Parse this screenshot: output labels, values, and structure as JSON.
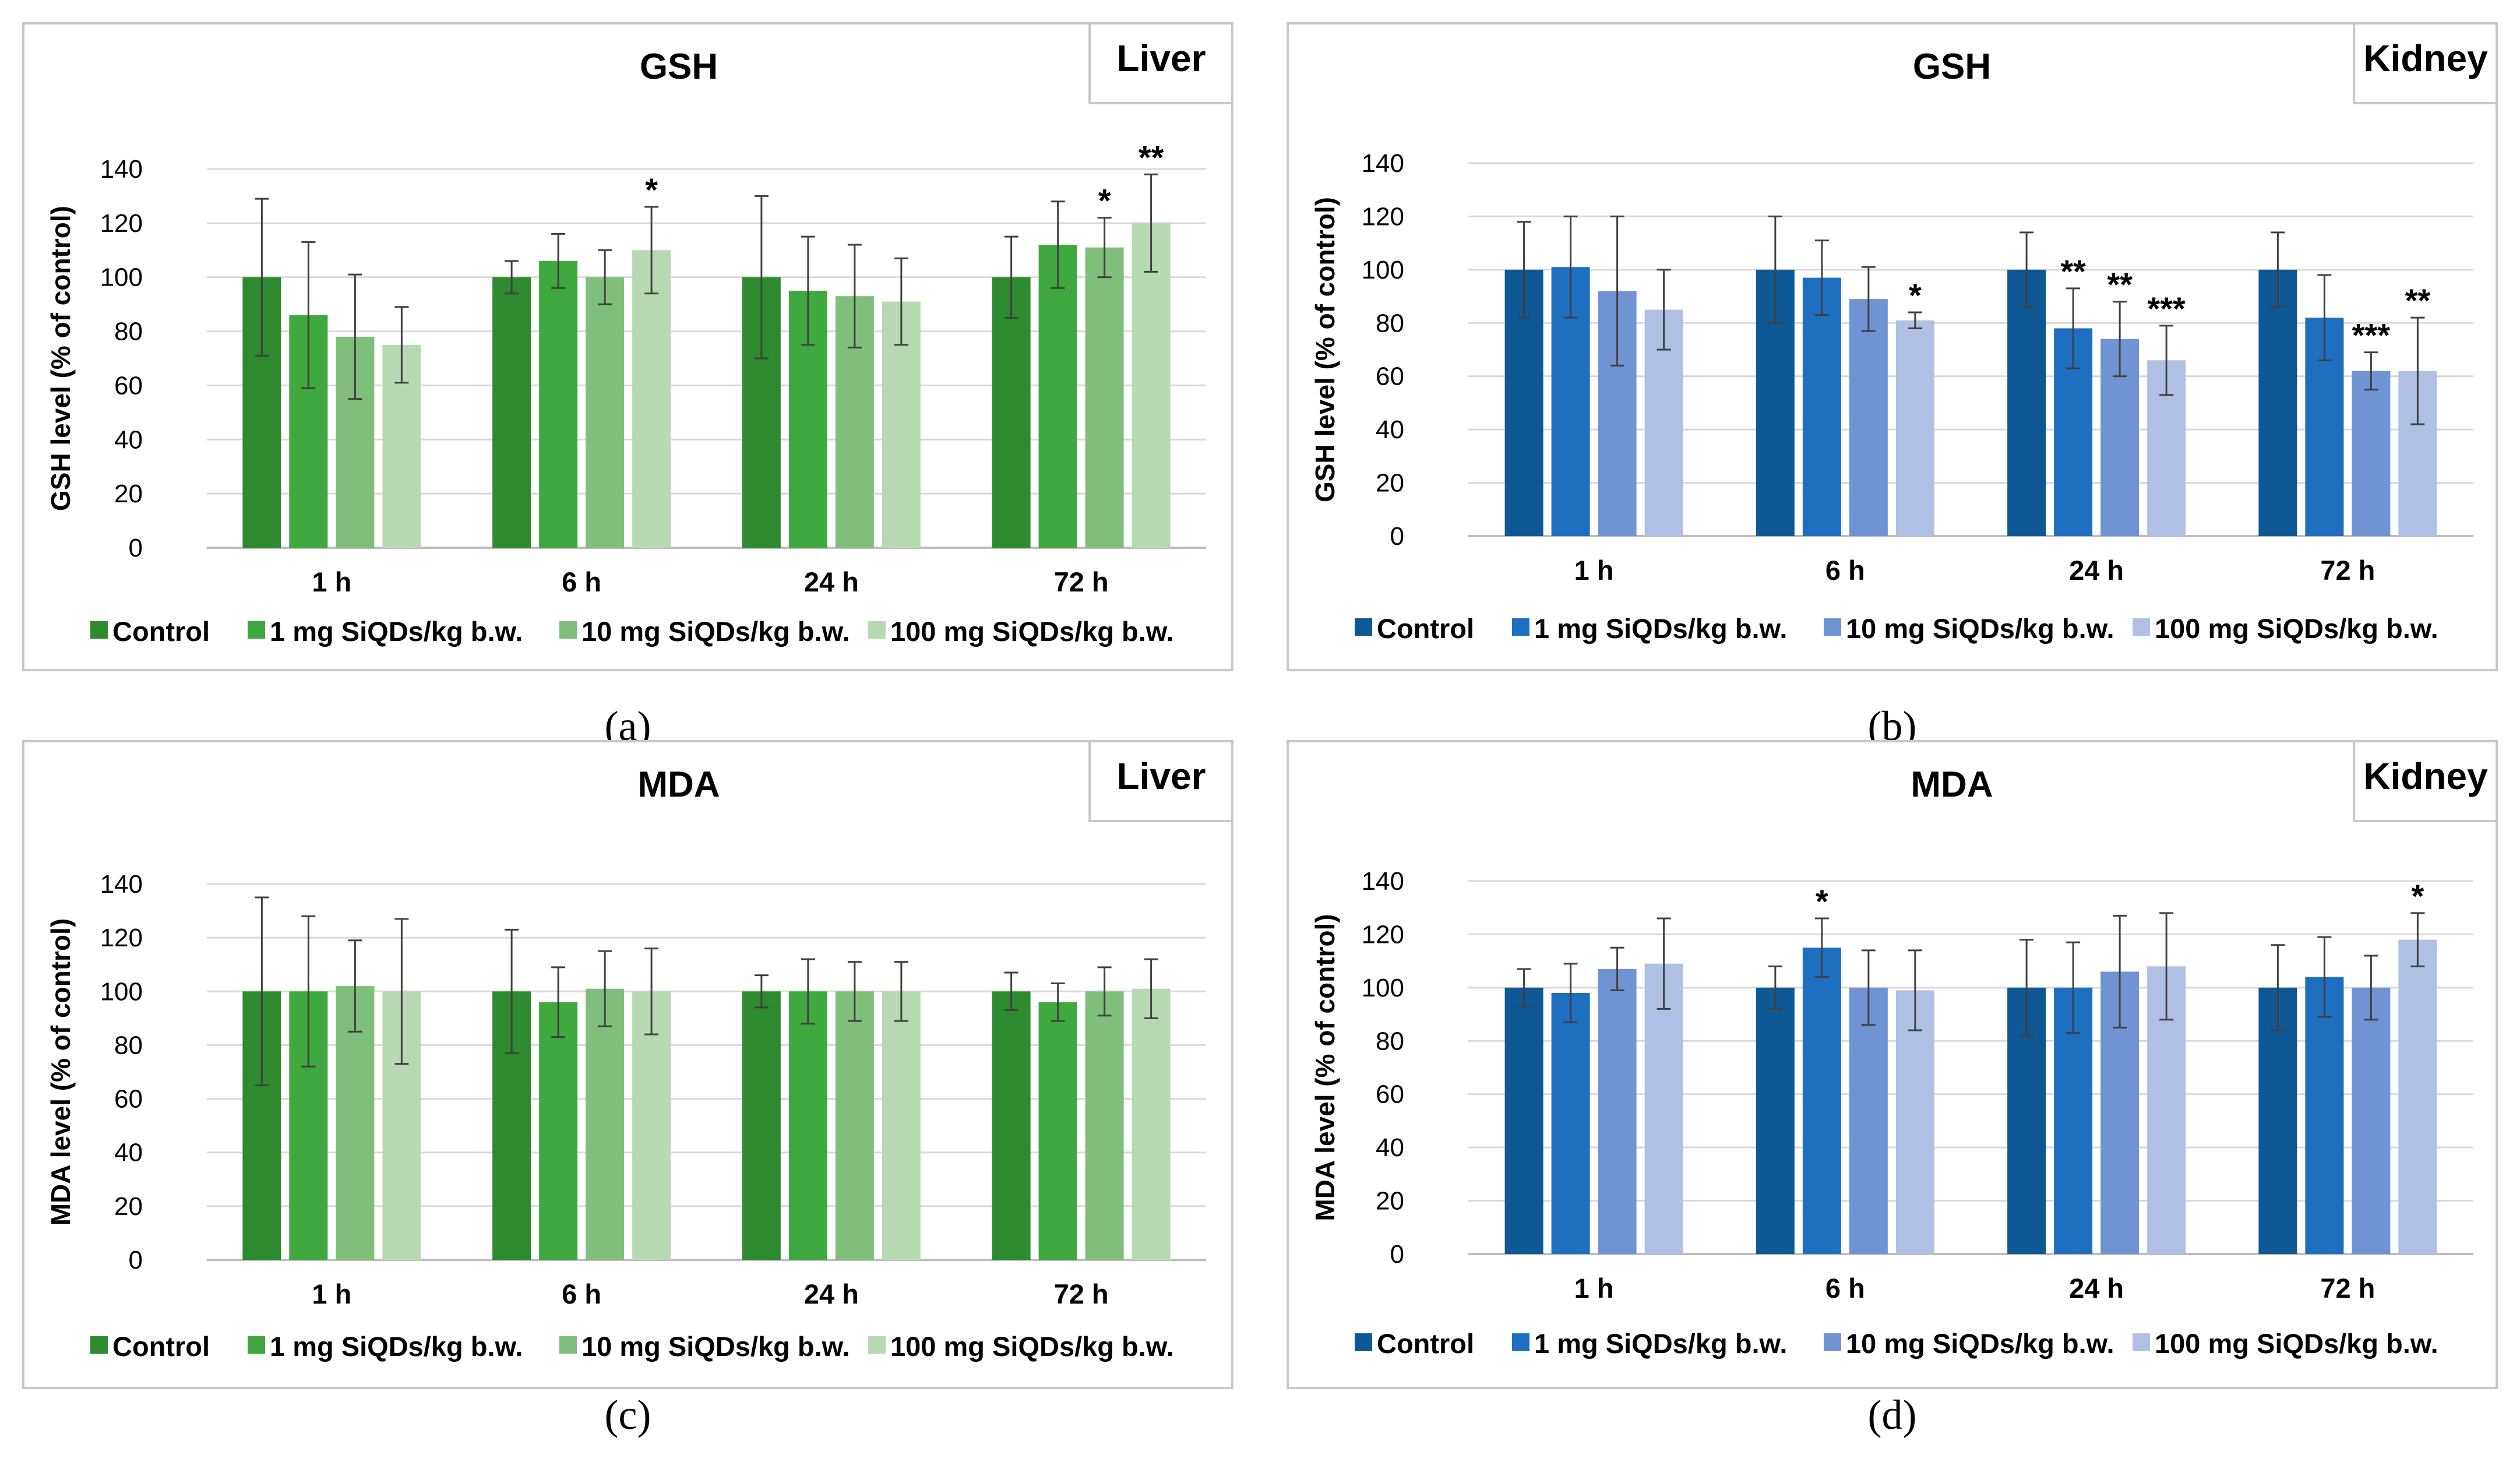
{
  "chart_data": [
    {
      "id": "a",
      "type": "bar",
      "panel_label": "(a)",
      "title": "GSH",
      "organ": "Liver",
      "ylabel": "GSH level (% of control)",
      "ylim": [
        0,
        140
      ],
      "yticks": [
        0,
        20,
        40,
        60,
        80,
        100,
        120,
        140
      ],
      "grid": true,
      "legend_position": "bottom",
      "categories": [
        "1 h",
        "6 h",
        "24 h",
        "72 h"
      ],
      "series": [
        {
          "name": "Control",
          "color": "#2e8a2e",
          "values": [
            100,
            100,
            100,
            100
          ],
          "errors": [
            29,
            6,
            30,
            15
          ],
          "sig": [
            "",
            "",
            "",
            ""
          ]
        },
        {
          "name": "1 mg SiQDs/kg b.w.",
          "color": "#3fa83f",
          "values": [
            86,
            106,
            95,
            112
          ],
          "errors": [
            27,
            10,
            20,
            16
          ],
          "sig": [
            "",
            "",
            "",
            ""
          ]
        },
        {
          "name": "10 mg SiQDs/kg b.w.",
          "color": "#7fbf7b",
          "values": [
            78,
            100,
            93,
            111
          ],
          "errors": [
            23,
            10,
            19,
            11
          ],
          "sig": [
            "",
            "",
            "",
            "*"
          ]
        },
        {
          "name": "100 mg SiQDs/kg b.w.",
          "color": "#b7d9b2",
          "values": [
            75,
            110,
            91,
            120
          ],
          "errors": [
            14,
            16,
            16,
            18
          ],
          "sig": [
            "",
            "*",
            "",
            "**"
          ]
        }
      ]
    },
    {
      "id": "b",
      "type": "bar",
      "panel_label": "(b)",
      "title": "GSH",
      "organ": "Kidney",
      "ylabel": "GSH level (% of control)",
      "ylim": [
        0,
        140
      ],
      "yticks": [
        0,
        20,
        40,
        60,
        80,
        100,
        120,
        140
      ],
      "grid": true,
      "legend_position": "bottom",
      "categories": [
        "1 h",
        "6 h",
        "24 h",
        "72 h"
      ],
      "series": [
        {
          "name": "Control",
          "color": "#0f5896",
          "values": [
            100,
            100,
            100,
            100
          ],
          "errors": [
            18,
            20,
            14,
            14
          ],
          "sig": [
            "",
            "",
            "",
            ""
          ]
        },
        {
          "name": "1 mg SiQDs/kg b.w.",
          "color": "#1f6fc0",
          "values": [
            101,
            97,
            78,
            82
          ],
          "errors": [
            19,
            14,
            15,
            16
          ],
          "sig": [
            "",
            "",
            "**",
            ""
          ]
        },
        {
          "name": "10 mg SiQDs/kg b.w.",
          "color": "#7093d3",
          "values": [
            92,
            89,
            74,
            62
          ],
          "errors": [
            28,
            12,
            14,
            7
          ],
          "sig": [
            "",
            "",
            "**",
            "***"
          ]
        },
        {
          "name": "100 mg SiQDs/kg b.w.",
          "color": "#b0c0e4",
          "values": [
            85,
            81,
            66,
            62
          ],
          "errors": [
            15,
            3,
            13,
            20
          ],
          "sig": [
            "",
            "*",
            "***",
            "**"
          ]
        }
      ]
    },
    {
      "id": "c",
      "type": "bar",
      "panel_label": "(c)",
      "title": "MDA",
      "organ": "Liver",
      "ylabel": "MDA level (% of control)",
      "ylim": [
        0,
        140
      ],
      "yticks": [
        0,
        20,
        40,
        60,
        80,
        100,
        120,
        140
      ],
      "grid": true,
      "legend_position": "bottom",
      "categories": [
        "1 h",
        "6 h",
        "24 h",
        "72 h"
      ],
      "series": [
        {
          "name": "Control",
          "color": "#2e8a2e",
          "values": [
            100,
            100,
            100,
            100
          ],
          "errors": [
            35,
            23,
            6,
            7
          ],
          "sig": [
            "",
            "",
            "",
            ""
          ]
        },
        {
          "name": "1 mg SiQDs/kg b.w.",
          "color": "#3fa83f",
          "values": [
            100,
            96,
            100,
            96
          ],
          "errors": [
            28,
            13,
            12,
            7
          ],
          "sig": [
            "",
            "",
            "",
            ""
          ]
        },
        {
          "name": "10 mg SiQDs/kg b.w.",
          "color": "#7fbf7b",
          "values": [
            102,
            101,
            100,
            100
          ],
          "errors": [
            17,
            14,
            11,
            9
          ],
          "sig": [
            "",
            "",
            "",
            ""
          ]
        },
        {
          "name": "100 mg SiQDs/kg b.w.",
          "color": "#b7d9b2",
          "values": [
            100,
            100,
            100,
            101
          ],
          "errors": [
            27,
            16,
            11,
            11
          ],
          "sig": [
            "",
            "",
            "",
            ""
          ]
        }
      ]
    },
    {
      "id": "d",
      "type": "bar",
      "panel_label": "(d)",
      "title": "MDA",
      "organ": "Kidney",
      "ylabel": "MDA level (% of control)",
      "ylim": [
        0,
        140
      ],
      "yticks": [
        0,
        20,
        40,
        60,
        80,
        100,
        120,
        140
      ],
      "grid": true,
      "legend_position": "bottom",
      "categories": [
        "1 h",
        "6 h",
        "24 h",
        "72 h"
      ],
      "series": [
        {
          "name": "Control",
          "color": "#0f5896",
          "values": [
            100,
            100,
            100,
            100
          ],
          "errors": [
            7,
            8,
            18,
            16
          ],
          "sig": [
            "",
            "",
            "",
            ""
          ]
        },
        {
          "name": "1 mg SiQDs/kg b.w.",
          "color": "#1f6fc0",
          "values": [
            98,
            115,
            100,
            104
          ],
          "errors": [
            11,
            11,
            17,
            15
          ],
          "sig": [
            "",
            "*",
            "",
            ""
          ]
        },
        {
          "name": "10 mg SiQDs/kg b.w.",
          "color": "#7093d3",
          "values": [
            107,
            100,
            106,
            100
          ],
          "errors": [
            8,
            14,
            21,
            12
          ],
          "sig": [
            "",
            "",
            "",
            ""
          ]
        },
        {
          "name": "100 mg SiQDs/kg b.w.",
          "color": "#b0c0e4",
          "values": [
            109,
            99,
            108,
            118
          ],
          "errors": [
            17,
            15,
            20,
            10
          ],
          "sig": [
            "",
            "",
            "",
            "*"
          ]
        }
      ]
    }
  ]
}
